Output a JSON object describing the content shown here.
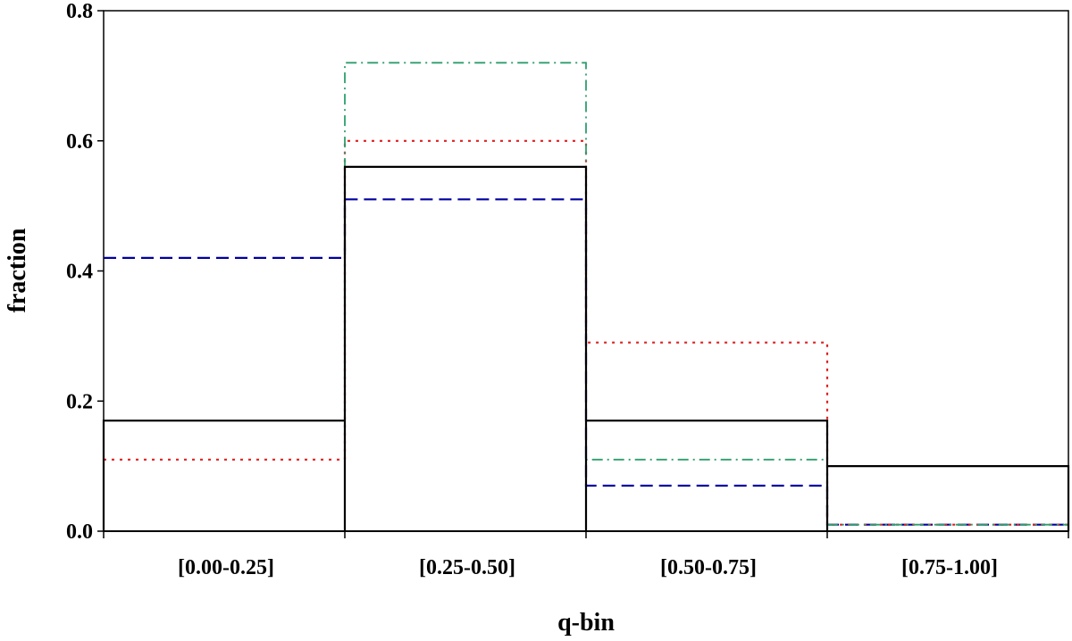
{
  "chart_data": {
    "type": "step-histogram",
    "title": "",
    "xlabel": "q-bin",
    "ylabel": "fraction",
    "categories": [
      "[0.00-0.25]",
      "[0.25-0.50]",
      "[0.50-0.75]",
      "[0.75-1.00]"
    ],
    "ylim": [
      0,
      0.8
    ],
    "yticks": [
      "0.0",
      "0.2",
      "0.4",
      "0.6",
      "0.8"
    ],
    "grid": false,
    "legend": "none",
    "series": [
      {
        "style": "solid",
        "color": "#000000",
        "values": [
          0.17,
          0.56,
          0.17,
          0.1
        ]
      },
      {
        "style": "dashed",
        "color": "#0000a0",
        "values": [
          0.42,
          0.51,
          0.07,
          0.01
        ]
      },
      {
        "style": "dotted",
        "color": "#e02020",
        "values": [
          0.11,
          0.6,
          0.29,
          0.01
        ]
      },
      {
        "style": "dash-dot",
        "color": "#2e9e6e",
        "values": [
          0.17,
          0.72,
          0.11,
          0.01
        ]
      }
    ]
  }
}
